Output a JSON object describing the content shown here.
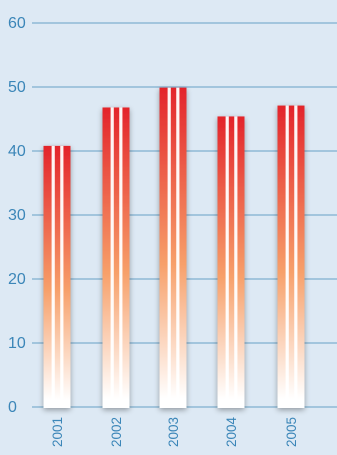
{
  "colors": {
    "background": "#dde9f4",
    "gridline": "#7fb0cf",
    "axis_text": "#3b86b8",
    "bar_top": "#e3242b",
    "bar_mid": "#f7a06a",
    "bar_bottom": "#ffffff",
    "stripe": "#ffffff"
  },
  "chart_data": {
    "type": "bar",
    "title": "",
    "xlabel": "",
    "ylabel": "",
    "categories": [
      "2001",
      "2002",
      "2003",
      "2004",
      "2005"
    ],
    "values": [
      40.8,
      46.8,
      49.9,
      45.4,
      47.1
    ],
    "ylim": [
      0,
      60
    ],
    "yticks": [
      0,
      10,
      20,
      30,
      40,
      50,
      60
    ],
    "grid": true,
    "legend": "none"
  }
}
